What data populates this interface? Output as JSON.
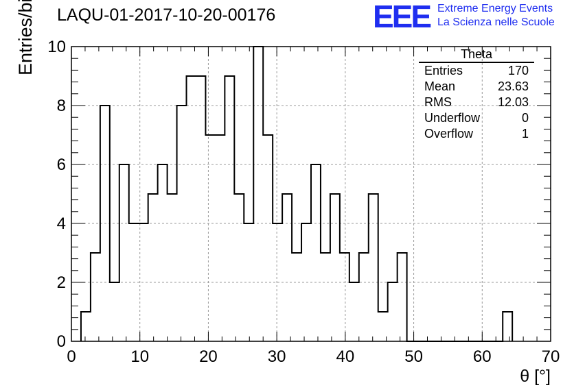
{
  "chart_data": {
    "type": "bar",
    "title": "LAQU-01-2017-10-20-00176",
    "xlabel": "θ [°]",
    "ylabel": "Entries/bin",
    "xlim": [
      0,
      70
    ],
    "ylim": [
      0,
      10
    ],
    "bin_width": 1.4,
    "bin_start": 1.4,
    "values": [
      1,
      3,
      8,
      2,
      6,
      4,
      4,
      5,
      6,
      5,
      8,
      9,
      9,
      7,
      7,
      9,
      5,
      4,
      10,
      7,
      4,
      5,
      3,
      4,
      6,
      3,
      5,
      3,
      2,
      3,
      5,
      1,
      2,
      3,
      0,
      0,
      0,
      0,
      0,
      0,
      0,
      0,
      0,
      0,
      1
    ],
    "xticks": [
      0,
      10,
      20,
      30,
      40,
      50,
      60,
      70
    ],
    "yticks": [
      0,
      2,
      4,
      6,
      8,
      10
    ],
    "grid": true,
    "histogram_style": "step"
  },
  "stats_box": {
    "title": "Theta",
    "rows": [
      {
        "label": "Entries",
        "value": "170"
      },
      {
        "label": "Mean",
        "value": "23.63"
      },
      {
        "label": "RMS",
        "value": "12.03"
      },
      {
        "label": "Underflow",
        "value": "0"
      },
      {
        "label": "Overflow",
        "value": "1"
      }
    ]
  },
  "logo": {
    "mark": "EEE",
    "line1": "Extreme Energy Events",
    "line2": "La Scienza nelle Scuole",
    "color": "#1f2ef0"
  }
}
